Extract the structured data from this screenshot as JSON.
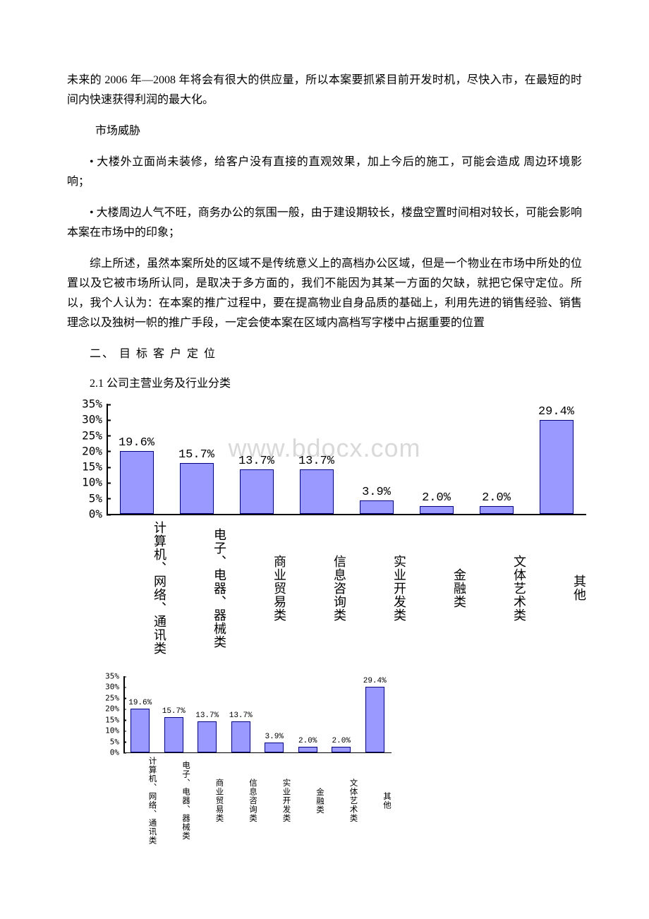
{
  "watermark": "www.bdocx.com",
  "paragraphs": {
    "p1": "未来的 2006 年—2008 年将会有很大的供应量，所以本案要抓紧目前开发时机，尽快入市，在最短的时间内快速获得利润的最大化。",
    "p2": "  市场威胁",
    "p3": "• 大楼外立面尚未装修，给客户没有直接的直观效果，加上今后的施工，可能会造成 周边环境影响；",
    "p4": "• 大楼周边人气不旺，商务办公的氛围一般，由于建设期较长，楼盘空置时间相对较长，可能会影响本案在市场中的印象；",
    "p5": "综上所述，虽然本案所处的区域不是传统意义上的高档办公区域，但是一个物业在市场中所处的位置以及它被市场所认同，是取决于多方面的，我们不能因为其某一方面的欠缺，就把它保守定位。所以，我个人认为：在本案的推广过程中，要在提高物业自身品质的基础上，利用先进的销售经验、销售理念以及独树一帜的推广手段，一定会使本案在区域内高档写字楼中占据重要的位置",
    "h1": "二、 目 标 客 户 定 位",
    "h2": "2.1 公司主营业务及行业分类"
  },
  "chart": {
    "type": "bar",
    "ymax": 35,
    "ytick_step": 5,
    "yticks": [
      "35%",
      "30%",
      "25%",
      "20%",
      "15%",
      "10%",
      "5%",
      "0%"
    ],
    "categories": [
      "计算机、网络、通讯类",
      "电子、电器、器械类",
      "商业贸易类",
      "信息咨询类",
      "实业开发类",
      "金融类",
      "文体艺术类",
      "其他"
    ],
    "values": [
      19.6,
      15.7,
      13.7,
      13.7,
      3.9,
      2.0,
      2.0,
      29.4
    ],
    "value_labels": [
      "19.6%",
      "15.7%",
      "13.7%",
      "13.7%",
      "3.9%",
      "2.0%",
      "2.0%",
      "29.4%"
    ],
    "bar_fill": "#9999ff",
    "bar_border": "#000080",
    "axis_color": "#000000",
    "background": "#ffffff"
  }
}
